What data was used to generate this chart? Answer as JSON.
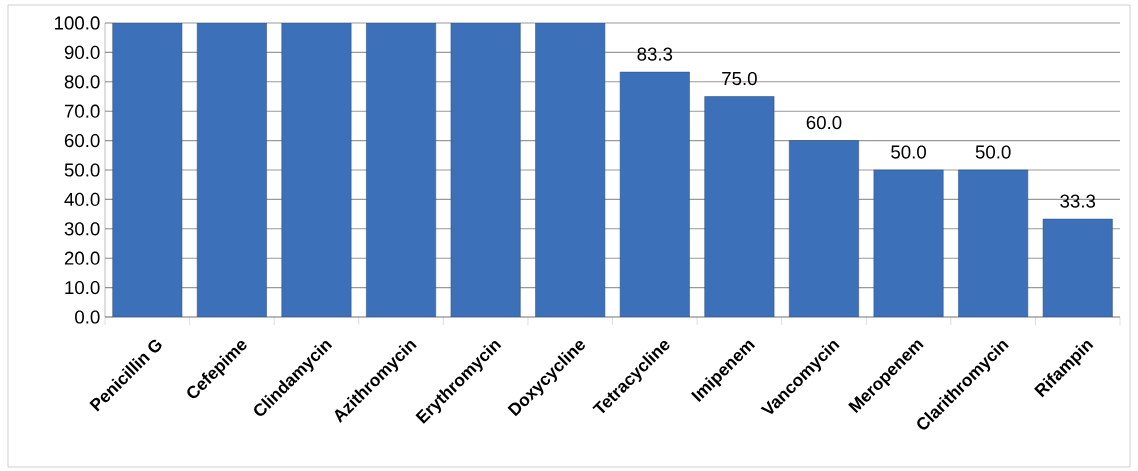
{
  "chart_data": {
    "type": "bar",
    "categories": [
      "Penicillin G",
      "Cefepime",
      "Clindamycin",
      "Azithromycin",
      "Erythromycin",
      "Doxycycline",
      "Tetracycline",
      "Imipenem",
      "Vancomycin",
      "Meropenem",
      "Clarithromycin",
      "Rifampin"
    ],
    "values": [
      100.0,
      100.0,
      100.0,
      100.0,
      100.0,
      100.0,
      83.3,
      75.0,
      60.0,
      50.0,
      50.0,
      33.3
    ],
    "value_labels": [
      null,
      null,
      null,
      null,
      null,
      null,
      "83.3",
      "75.0",
      "60.0",
      "50.0",
      "50.0",
      "33.3"
    ],
    "color": "#3c70b9",
    "ylim": [
      0,
      100
    ],
    "yticks": [
      {
        "value": 0,
        "label": "0.0"
      },
      {
        "value": 10,
        "label": "10.0"
      },
      {
        "value": 20,
        "label": "20.0"
      },
      {
        "value": 30,
        "label": "30.0"
      },
      {
        "value": 40,
        "label": "40.0"
      },
      {
        "value": 50,
        "label": "50.0"
      },
      {
        "value": 60,
        "label": "60.0"
      },
      {
        "value": 70,
        "label": "70.0"
      },
      {
        "value": 80,
        "label": "80.0"
      },
      {
        "value": 90,
        "label": "90.0"
      },
      {
        "value": 100,
        "label": "100.0"
      }
    ],
    "grid": "y"
  }
}
